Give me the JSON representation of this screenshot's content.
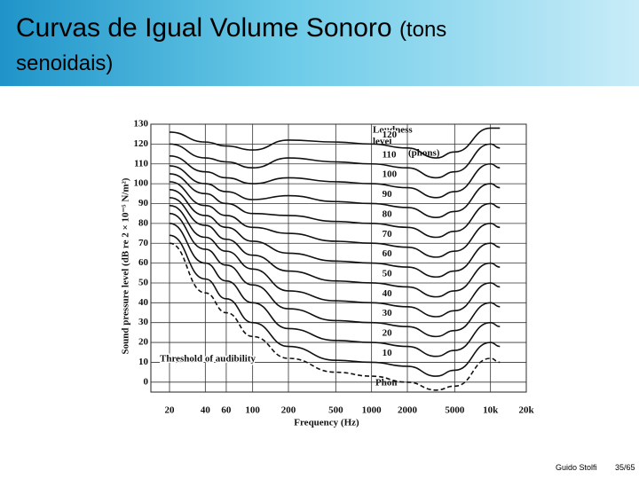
{
  "slide": {
    "title": "Curvas de Igual Volume Sonoro",
    "title_note": "(tons senoidais)",
    "author": "Guido Stolfi",
    "page": "35/65"
  },
  "chart_data": {
    "type": "line",
    "x_label": "Frequency (Hz)",
    "y_label": "Sound pressure level (dB re 2 × 10⁻⁵ N/m²)",
    "annotations": [
      "Loudness",
      "level",
      "(phons)",
      "Phon"
    ],
    "log_x": true,
    "grid": true,
    "xlim": [
      20,
      20000
    ],
    "xticks": [
      20,
      40,
      60,
      100,
      200,
      500,
      1000,
      2000,
      5000,
      {
        "value": 10000,
        "label": "10k"
      },
      {
        "value": 20000,
        "label": "20k"
      }
    ],
    "ylim": [
      -5,
      130
    ],
    "yticks": [
      0,
      10,
      20,
      30,
      40,
      50,
      60,
      70,
      80,
      90,
      100,
      110,
      120,
      130
    ],
    "x": [
      20,
      40,
      60,
      100,
      200,
      500,
      1000,
      2000,
      3500,
      5000,
      10000,
      12000
    ],
    "series": [
      {
        "name": "Threshold of audibility",
        "color": "#111",
        "dashed": true,
        "values": [
          70,
          45,
          35,
          23,
          12,
          5,
          3,
          0,
          -4,
          -2,
          12,
          10
        ]
      },
      {
        "name": "10",
        "color": "#111",
        "values": [
          74,
          52,
          42,
          30,
          18,
          11,
          10,
          8,
          3,
          6,
          20,
          18
        ]
      },
      {
        "name": "20",
        "color": "#111",
        "values": [
          80,
          60,
          51,
          40,
          27,
          21,
          20,
          18,
          13,
          16,
          30,
          28
        ]
      },
      {
        "name": "30",
        "color": "#111",
        "values": [
          85,
          67,
          59,
          49,
          37,
          31,
          30,
          28,
          23,
          26,
          40,
          38
        ]
      },
      {
        "name": "40",
        "color": "#111",
        "values": [
          89,
          73,
          66,
          57,
          46,
          41,
          40,
          38,
          33,
          36,
          50,
          48
        ]
      },
      {
        "name": "50",
        "color": "#111",
        "values": [
          93,
          79,
          72,
          64,
          56,
          51,
          50,
          48,
          43,
          46,
          60,
          58
        ]
      },
      {
        "name": "60",
        "color": "#111",
        "values": [
          97,
          84,
          78,
          71,
          65,
          61,
          60,
          58,
          53,
          56,
          70,
          68
        ]
      },
      {
        "name": "70",
        "color": "#111",
        "values": [
          101,
          89,
          84,
          78,
          75,
          71,
          70,
          68,
          63,
          66,
          80,
          78
        ]
      },
      {
        "name": "80",
        "color": "#111",
        "values": [
          105,
          95,
          90,
          85,
          84,
          81,
          80,
          78,
          73,
          76,
          90,
          88
        ]
      },
      {
        "name": "90",
        "color": "#111",
        "values": [
          109,
          100,
          96,
          92,
          94,
          91,
          90,
          88,
          83,
          86,
          100,
          98
        ]
      },
      {
        "name": "100",
        "color": "#111",
        "values": [
          114,
          106,
          103,
          100,
          103,
          101,
          100,
          98,
          93,
          96,
          110,
          108
        ]
      },
      {
        "name": "110",
        "color": "#111",
        "values": [
          120,
          113,
          111,
          108,
          113,
          111,
          110,
          108,
          103,
          106,
          120,
          118
        ]
      },
      {
        "name": "120",
        "color": "#111",
        "values": [
          126,
          121,
          119,
          117,
          122,
          121,
          120,
          118,
          113,
          116,
          128,
          128
        ]
      }
    ]
  }
}
